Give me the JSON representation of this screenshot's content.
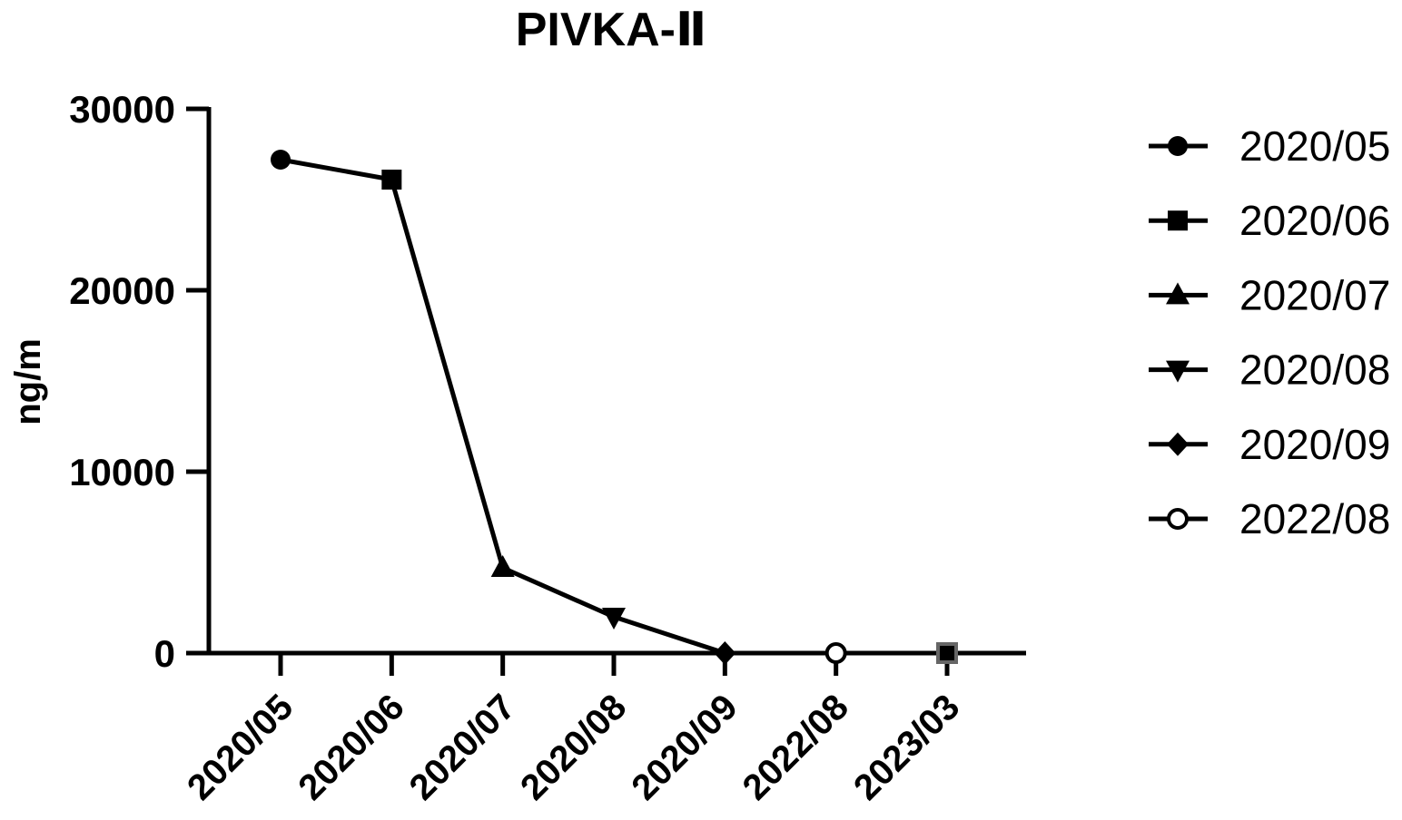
{
  "chart_data": {
    "type": "line",
    "title": "PIVKA-Ⅱ",
    "xlabel": "",
    "ylabel": "ng/m",
    "categories": [
      "2020/05",
      "2020/06",
      "2020/07",
      "2020/08",
      "2020/09",
      "2022/08",
      "2023/03"
    ],
    "values": [
      27200,
      26100,
      4700,
      2000,
      0,
      0,
      0
    ],
    "markers": [
      "circle-filled",
      "square-filled",
      "triangle-up",
      "triangle-down",
      "diamond",
      "circle-open",
      "square-gray-border"
    ],
    "ylim": [
      0,
      30000
    ],
    "yticks": [
      0,
      10000,
      20000,
      30000
    ],
    "grid": false,
    "legend": {
      "position": "right",
      "entries": [
        {
          "label": "2020/05",
          "marker": "circle-filled"
        },
        {
          "label": "2020/06",
          "marker": "square-filled"
        },
        {
          "label": "2020/07",
          "marker": "triangle-up"
        },
        {
          "label": "2020/08",
          "marker": "triangle-down"
        },
        {
          "label": "2020/09",
          "marker": "diamond"
        },
        {
          "label": "2022/08",
          "marker": "circle-open"
        }
      ]
    },
    "colors": {
      "line": "#000000",
      "marker": "#000000",
      "marker_gray_border": "#666666"
    }
  }
}
